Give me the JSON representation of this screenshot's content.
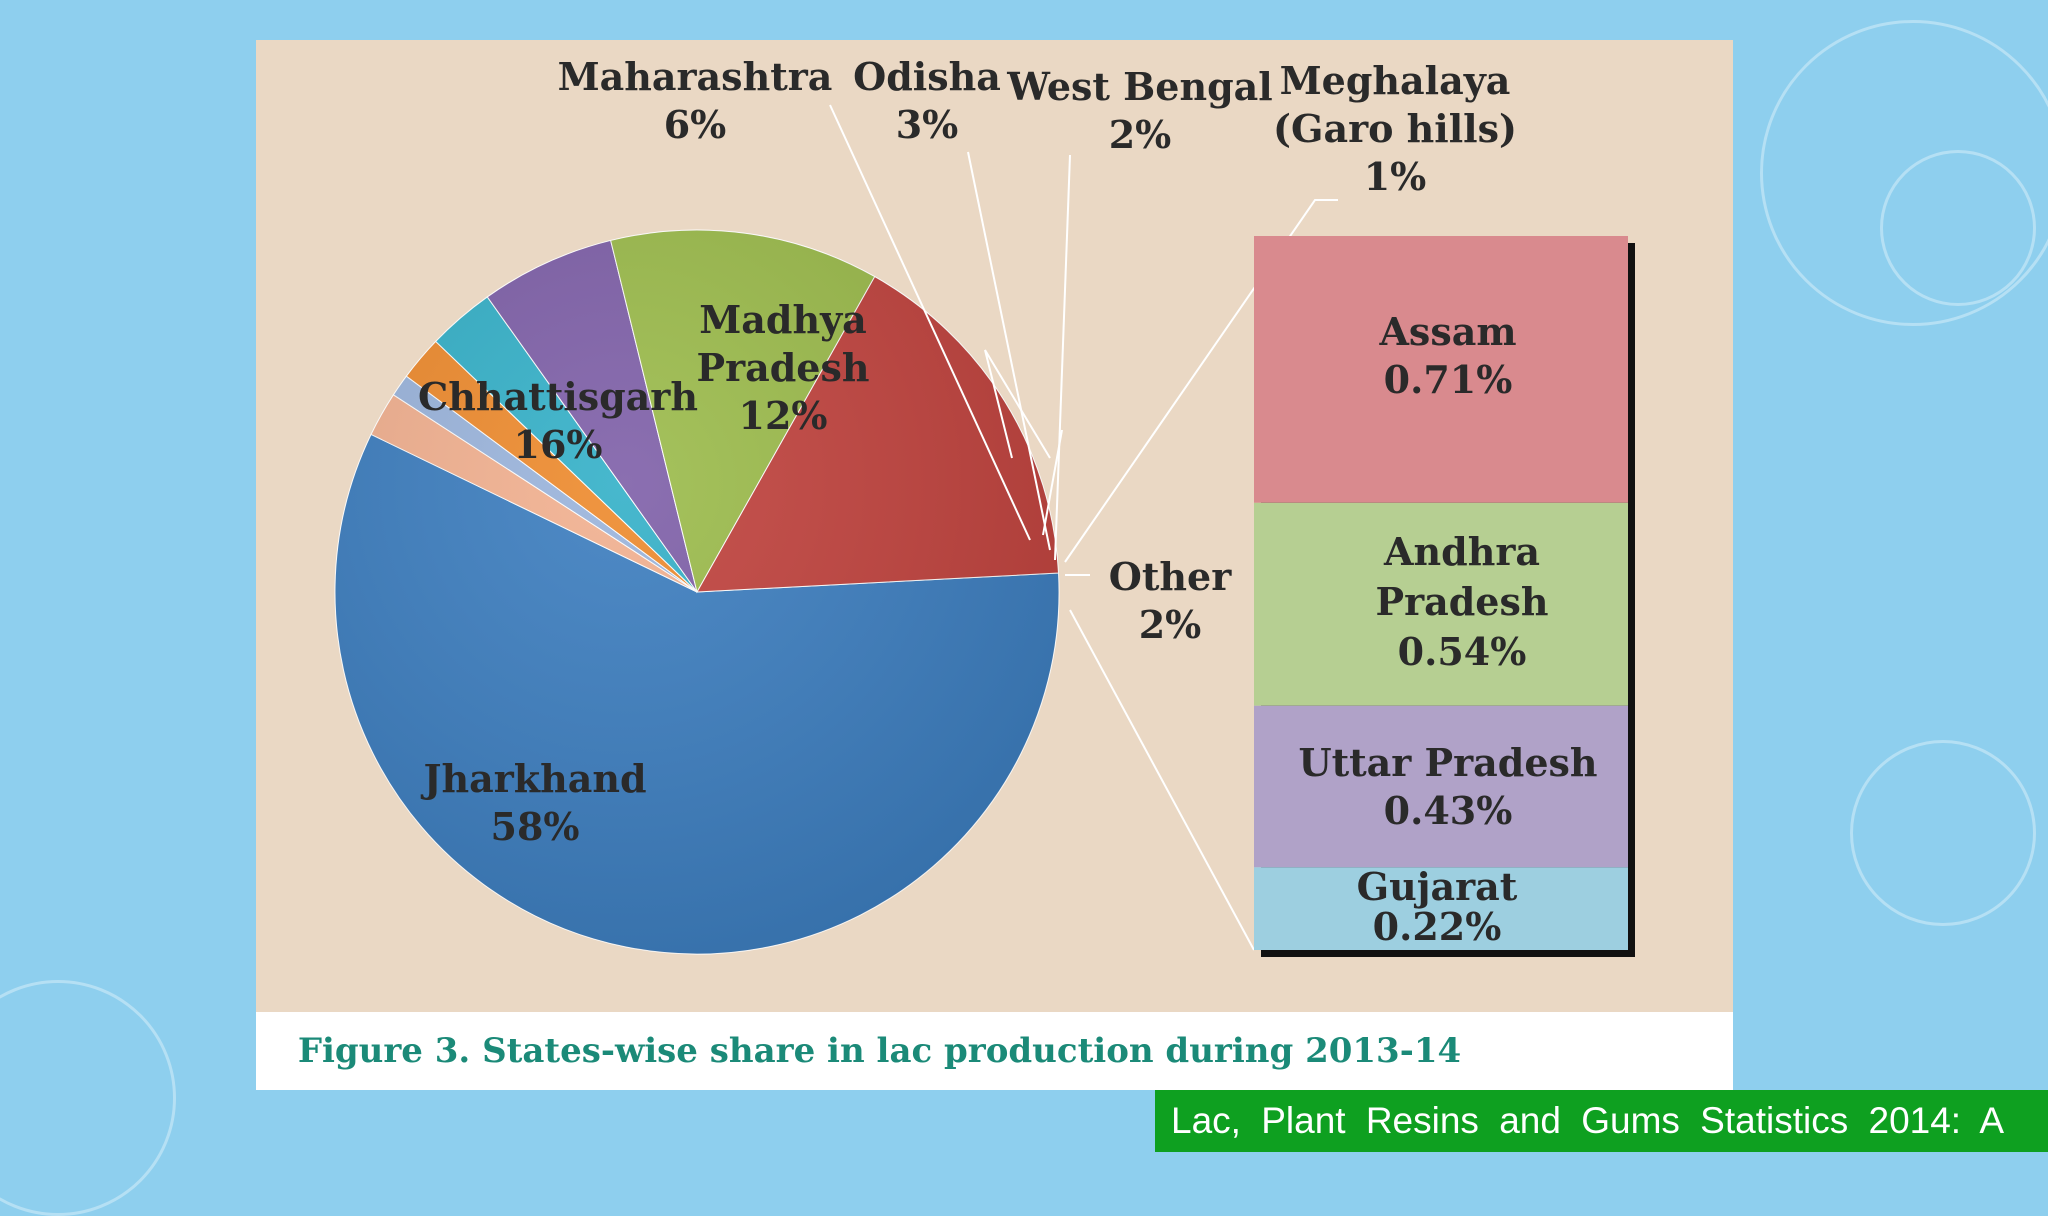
{
  "chart_data": {
    "type": "pie",
    "title": "Figure 3. States-wise share in lac production during 2013-14",
    "main_slices": [
      {
        "name": "Jharkhand",
        "value": 58,
        "label": "58%",
        "color": "#3b7dbf"
      },
      {
        "name": "Chhattisgarh",
        "value": 16,
        "label": "16%",
        "color": "#c0413c"
      },
      {
        "name": "Madhya Pradesh",
        "value": 12,
        "label": "12%",
        "color": "#9bbb4a"
      },
      {
        "name": "Maharashtra",
        "value": 6,
        "label": "6%",
        "color": "#7e5fa8"
      },
      {
        "name": "Odisha",
        "value": 3,
        "label": "3%",
        "color": "#33b0c8"
      },
      {
        "name": "West Bengal",
        "value": 2,
        "label": "2%",
        "color": "#ee8a2c"
      },
      {
        "name": "Meghalaya (Garo hills)",
        "value": 1,
        "label": "1%",
        "color": "#9ab4dc"
      },
      {
        "name": "Other",
        "value": 2,
        "label": "2%",
        "color": "#f2b08f"
      }
    ],
    "other_breakdown": [
      {
        "name": "Assam",
        "value": 0.71,
        "label": "0.71%",
        "color": "#d98a8e"
      },
      {
        "name": "Andhra Pradesh",
        "value": 0.54,
        "label": "0.54%",
        "color": "#b6cf92"
      },
      {
        "name": "Uttar Pradesh",
        "value": 0.43,
        "label": "0.43%",
        "color": "#b0a2c8"
      },
      {
        "name": "Gujarat",
        "value": 0.22,
        "label": "0.22%",
        "color": "#9dcfe0"
      }
    ]
  },
  "labels": {
    "jharkhand": [
      "Jharkhand",
      "58%"
    ],
    "chhattisgarh": [
      "Chhattisgarh",
      "16%"
    ],
    "madhya_pradesh": [
      "Madhya",
      "Pradesh",
      "12%"
    ],
    "maharashtra": [
      "Maharashtra",
      "6%"
    ],
    "odisha": [
      "Odisha",
      "3%"
    ],
    "west_bengal": [
      "West Bengal",
      "2%"
    ],
    "meghalaya": [
      "Meghalaya",
      "(Garo hills)",
      "1%"
    ],
    "other": [
      "Other",
      "2%"
    ],
    "assam": [
      "Assam",
      "0.71%"
    ],
    "andhra_pradesh": [
      "Andhra",
      "Pradesh",
      "0.54%"
    ],
    "uttar_pradesh": [
      "Uttar Pradesh",
      "0.43%"
    ],
    "gujarat": [
      "Gujarat",
      "0.22%"
    ]
  },
  "caption": "Figure 3. States-wise share in lac production during 2013-14",
  "source_banner": "Lac, Plant Resins and Gums Statistics 2014: A"
}
